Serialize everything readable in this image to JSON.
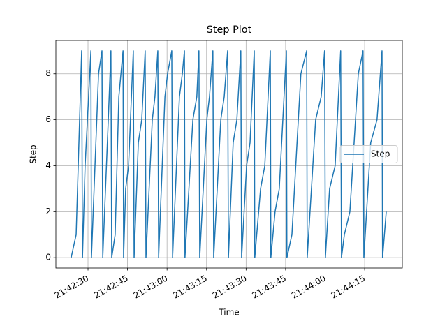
{
  "chart_data": {
    "type": "line",
    "title": "Step Plot",
    "x_label": "Time",
    "y_label": "Step",
    "x": [
      78143.6,
      78145.5,
      78147.6,
      78147.9,
      78148.9,
      78151.1,
      78151.3,
      78154.0,
      78155.3,
      78155.6,
      78157.7,
      78158.7,
      78159.0,
      78160.3,
      78161.7,
      78163.3,
      78163.5,
      78164.3,
      78165.4,
      78167.2,
      78167.5,
      78169.1,
      78170.4,
      78171.7,
      78172.0,
      78174.4,
      78175.4,
      78176.5,
      78176.8,
      78179.2,
      78180.2,
      78181.8,
      78182.1,
      78184.7,
      78185.8,
      78186.6,
      78186.8,
      78189.8,
      78191.3,
      78192.1,
      78192.4,
      78195.1,
      78196.1,
      78197.4,
      78197.7,
      78200.4,
      78201.7,
      78203.0,
      78203.3,
      78205.1,
      78206.5,
      78208.0,
      78208.3,
      78210.2,
      78211.5,
      78213.1,
      78213.3,
      78215.5,
      78217.1,
      78219.2,
      78219.4,
      78221.0,
      78222.6,
      78225.3,
      78225.5,
      78227.4,
      78230.8,
      78233.0,
      78233.2,
      78236.4,
      78238.5,
      78239.8,
      78240.1,
      78241.7,
      78243.8,
      78245.9,
      78246.2,
      78247.3,
      78249.4,
      78252.6,
      78254.4,
      78254.7,
      78257.3,
      78259.7,
      78261.6,
      78261.8,
      78263.2
    ],
    "series": [
      {
        "name": "Step",
        "color": "#1f77b4",
        "values": [
          0,
          1,
          9,
          0,
          4,
          9,
          0,
          8,
          9,
          0,
          6,
          9,
          0,
          1,
          7,
          9,
          0,
          3,
          4,
          9,
          0,
          5,
          6,
          9,
          0,
          6,
          7,
          9,
          0,
          7,
          8,
          9,
          0,
          7,
          8,
          9,
          0,
          6,
          7,
          9,
          0,
          6,
          7,
          9,
          0,
          6,
          7,
          9,
          0,
          5,
          6,
          9,
          0,
          4,
          5,
          9,
          0,
          3,
          4,
          9,
          0,
          2,
          3,
          9,
          0,
          1,
          8,
          9,
          0,
          6,
          7,
          9,
          0,
          3,
          4,
          9,
          0,
          1,
          2,
          8,
          9,
          0,
          5,
          6,
          9,
          0,
          2
        ]
      }
    ],
    "xlim": [
      78137.8,
      78269.3
    ],
    "xticks": [
      {
        "value": 78150,
        "label": "21:42:30"
      },
      {
        "value": 78165,
        "label": "21:42:45"
      },
      {
        "value": 78180,
        "label": "21:43:00"
      },
      {
        "value": 78195,
        "label": "21:43:15"
      },
      {
        "value": 78210,
        "label": "21:43:30"
      },
      {
        "value": 78225,
        "label": "21:43:45"
      },
      {
        "value": 78240,
        "label": "21:44:00"
      },
      {
        "value": 78255,
        "label": "21:44:15"
      }
    ],
    "ylim": [
      -0.45,
      9.45
    ],
    "yticks": [
      0,
      2,
      4,
      6,
      8
    ],
    "grid": true,
    "legend": "center right"
  }
}
